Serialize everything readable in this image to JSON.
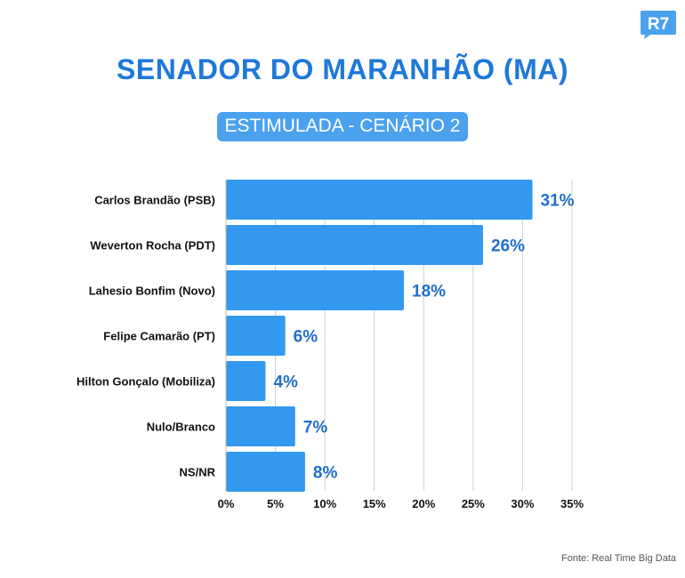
{
  "brand": {
    "logo_text": "R7",
    "logo_color": "#4aa1ee"
  },
  "header": {
    "title": "SENADOR DO MARANHÃO (MA)",
    "subtitle": "ESTIMULADA - CENÁRIO 2"
  },
  "footer": {
    "source": "Fonte: Real Time Big Data"
  },
  "colors": {
    "bar": "#3399ee",
    "value_label": "#1f6fc9",
    "title": "#1f78d9",
    "grid": "#d0d0d0"
  },
  "chart_data": {
    "type": "bar",
    "orientation": "horizontal",
    "title": "SENADOR DO MARANHÃO (MA)",
    "subtitle": "ESTIMULADA - CENÁRIO 2",
    "categories": [
      "Carlos Brandão (PSB)",
      "Weverton Rocha (PDT)",
      "Lahesio Bonfim (Novo)",
      "Felipe Camarão (PT)",
      "Hilton Gonçalo (Mobiliza)",
      "Nulo/Branco",
      "NS/NR"
    ],
    "values": [
      31,
      26,
      18,
      6,
      4,
      7,
      8
    ],
    "value_labels": [
      "31%",
      "26%",
      "18%",
      "6%",
      "4%",
      "7%",
      "8%"
    ],
    "xlim": [
      0,
      35
    ],
    "x_ticks": [
      0,
      5,
      10,
      15,
      20,
      25,
      30,
      35
    ],
    "x_tick_labels": [
      "0%",
      "5%",
      "10%",
      "15%",
      "20%",
      "25%",
      "30%",
      "35%"
    ],
    "xlabel": "",
    "ylabel": "",
    "grid": true
  }
}
